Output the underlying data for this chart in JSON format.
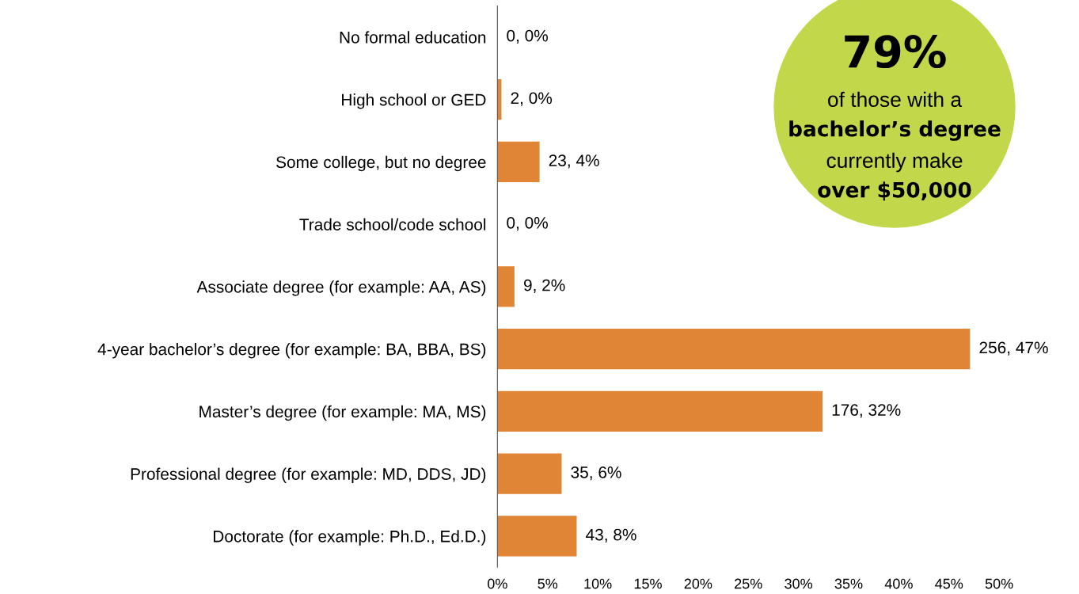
{
  "chart_data": {
    "type": "bar",
    "orientation": "horizontal",
    "categories": [
      "No formal education",
      "High school or GED",
      "Some college, but no degree",
      "Trade school/code school",
      "Associate degree (for example: AA, AS)",
      "4-year bachelor’s degree (for example: BA, BBA, BS)",
      "Master’s degree (for example: MA, MS)",
      "Professional degree (for example: MD, DDS, JD)",
      "Doctorate (for example: Ph.D., Ed.D.)"
    ],
    "values": [
      0,
      0.4,
      4.2,
      0,
      1.7,
      47.1,
      32.4,
      6.4,
      7.9
    ],
    "value_labels": [
      "0, 0%",
      "2, 0%",
      "23, 4%",
      "0, 0%",
      "9, 2%",
      "256, 47%",
      "176, 32%",
      "35, 6%",
      "43, 8%"
    ],
    "color": "#e08536",
    "xlim": [
      0,
      50
    ],
    "xticks": [
      {
        "value": 0,
        "label": "0%"
      },
      {
        "value": 5,
        "label": "5%"
      },
      {
        "value": 10,
        "label": "10%"
      },
      {
        "value": 15,
        "label": "15%"
      },
      {
        "value": 20,
        "label": "20%"
      },
      {
        "value": 25,
        "label": "25%"
      },
      {
        "value": 30,
        "label": "30%"
      },
      {
        "value": 35,
        "label": "35%"
      },
      {
        "value": 40,
        "label": "40%"
      },
      {
        "value": 45,
        "label": "45%"
      },
      {
        "value": 50,
        "label": "50%"
      }
    ],
    "grid": false,
    "legend": false,
    "annotations": [
      "79%",
      "of those with a",
      "bachelor’s degree",
      "currently make",
      "over $50,000"
    ]
  }
}
